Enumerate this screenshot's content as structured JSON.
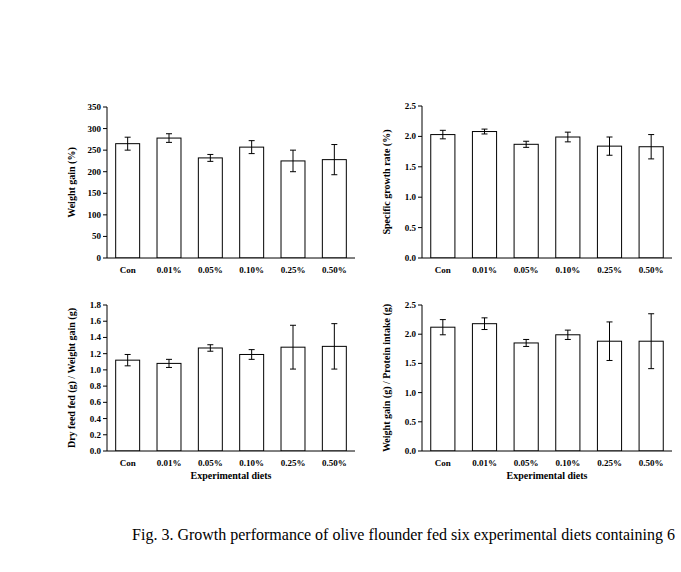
{
  "chart_data": [
    {
      "type": "bar",
      "y_label": "Weight gain (%)",
      "categories": [
        "Con",
        "0.01%",
        "0.05%",
        "0.10%",
        "0.25%",
        "0.50%"
      ],
      "values": [
        265,
        278,
        232,
        257,
        225,
        228
      ],
      "errors": [
        15,
        10,
        8,
        15,
        25,
        35
      ],
      "color": "#ffffff",
      "ylim": [
        0,
        350
      ],
      "yticks": [
        0,
        50,
        100,
        150,
        200,
        250,
        300,
        350
      ],
      "grid": false
    },
    {
      "type": "bar",
      "y_label": "Specific growth rate (%)",
      "categories": [
        "Con",
        "0.01%",
        "0.05%",
        "0.10%",
        "0.25%",
        "0.50%"
      ],
      "values": [
        2.03,
        2.08,
        1.87,
        1.99,
        1.84,
        1.83
      ],
      "errors": [
        0.07,
        0.04,
        0.05,
        0.08,
        0.15,
        0.2
      ],
      "color": "#ffffff",
      "ylim": [
        0,
        2.5
      ],
      "yticks": [
        {
          "value": 0,
          "label": "0.0"
        },
        {
          "value": 0.5,
          "label": "0.5"
        },
        {
          "value": 1,
          "label": "1.0"
        },
        {
          "value": 1.5,
          "label": "1.5"
        },
        {
          "value": 2,
          "label": "2.0"
        },
        {
          "value": 2.5,
          "label": "2.5"
        }
      ],
      "grid": false
    },
    {
      "type": "bar",
      "y_label": "Dry feed fed (g) /  Weight gain (g)",
      "x_label": "Experimental diets",
      "categories": [
        "Con",
        "0.01%",
        "0.05%",
        "0.10%",
        "0.25%",
        "0.50%"
      ],
      "values": [
        1.12,
        1.08,
        1.27,
        1.19,
        1.28,
        1.29
      ],
      "errors": [
        0.07,
        0.05,
        0.04,
        0.06,
        0.27,
        0.28
      ],
      "color": "#ffffff",
      "ylim": [
        0,
        1.8
      ],
      "yticks": [
        {
          "value": 0,
          "label": "0.0"
        },
        0.2,
        0.4,
        0.6,
        0.8,
        {
          "value": 1,
          "label": "1.0"
        },
        1.2,
        1.4,
        1.6,
        1.8
      ],
      "grid": false
    },
    {
      "type": "bar",
      "y_label": "Weight gain (g) / Protein intake (g)",
      "x_label": "Experimental diets",
      "categories": [
        "Con",
        "0.01%",
        "0.05%",
        "0.10%",
        "0.25%",
        "0.50%"
      ],
      "values": [
        2.12,
        2.18,
        1.85,
        1.99,
        1.88,
        1.88
      ],
      "errors": [
        0.13,
        0.1,
        0.06,
        0.08,
        0.33,
        0.47
      ],
      "color": "#ffffff",
      "ylim": [
        0,
        2.5
      ],
      "yticks": [
        {
          "value": 0,
          "label": "0.0"
        },
        {
          "value": 0.5,
          "label": "0.5"
        },
        {
          "value": 1,
          "label": "1.0"
        },
        {
          "value": 1.5,
          "label": "1.5"
        },
        {
          "value": 2,
          "label": "2.0"
        },
        {
          "value": 2.5,
          "label": "2.5"
        }
      ],
      "grid": false
    }
  ],
  "caption": "Fig. 3. Growth performance of olive flounder fed six experimental diets containing 6"
}
